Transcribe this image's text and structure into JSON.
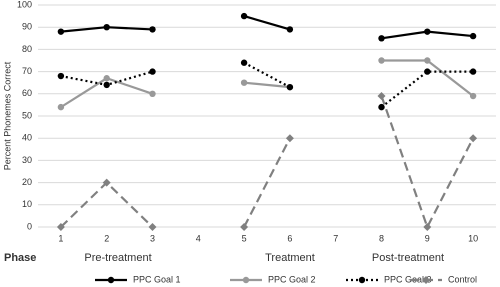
{
  "chart_data": {
    "type": "line",
    "ylabel": "Percent Phonemes Correct",
    "categories": [
      "1",
      "2",
      "3",
      "4",
      "5",
      "6",
      "7",
      "8",
      "9",
      "10"
    ],
    "series": [
      {
        "name": "PPC Goal 1",
        "color": "#000000",
        "style": "solid",
        "marker": "circle",
        "values": [
          88,
          90,
          89,
          null,
          95,
          89,
          null,
          85,
          88,
          86
        ]
      },
      {
        "name": "PPC Goal 2",
        "color": "#999999",
        "style": "solid",
        "marker": "circle",
        "values": [
          54,
          67,
          60,
          null,
          65,
          63,
          null,
          75,
          75,
          59
        ]
      },
      {
        "name": "PPC Goal 3",
        "color": "#000000",
        "style": "dotted",
        "marker": "circle",
        "values": [
          68,
          64,
          70,
          null,
          74,
          63,
          null,
          54,
          70,
          70
        ]
      },
      {
        "name": "Control",
        "color": "#808080",
        "style": "dashed",
        "marker": "diamond",
        "values": [
          0,
          20,
          0,
          null,
          0,
          40,
          null,
          59,
          0,
          40
        ]
      }
    ],
    "ylim": [
      0,
      100
    ],
    "yticks": [
      0,
      10,
      20,
      30,
      40,
      50,
      60,
      70,
      80,
      90,
      100
    ],
    "grid": true,
    "phase_title": "Phase",
    "phases": [
      "Pre-treatment",
      "Treatment",
      "Post-treatment"
    ],
    "legend": "bottom"
  }
}
